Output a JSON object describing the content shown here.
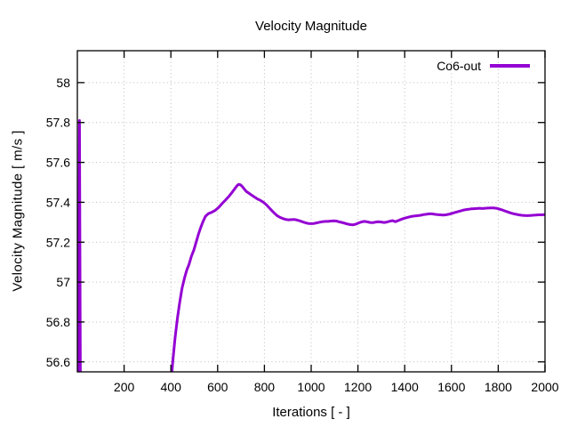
{
  "title": "Velocity Magnitude",
  "axes": {
    "xlabel": "Iterations [ - ]",
    "ylabel": "Velocity Magnitude [ m/s ]"
  },
  "legend": {
    "label": "Co6-out",
    "position": "top-right"
  },
  "colors": {
    "line": "#9400d3",
    "grid": "#bcbcbc",
    "border": "#000000",
    "background": "#ffffff",
    "text": "#000000"
  },
  "chart_data": {
    "type": "line",
    "title": "Velocity Magnitude",
    "xlabel": "Iterations [ - ]",
    "ylabel": "Velocity Magnitude [ m/s ]",
    "xlim": [
      0,
      2000
    ],
    "ylim": [
      56.55,
      58.16
    ],
    "xticks": [
      200,
      400,
      600,
      800,
      1000,
      1200,
      1400,
      1600,
      1800,
      2000
    ],
    "yticks": [
      56.6,
      56.8,
      57,
      57.2,
      57.4,
      57.6,
      57.8,
      58
    ],
    "grid": true,
    "grid_style": "dotted",
    "legend_position": "top-right",
    "series": [
      {
        "name": "Co6-out",
        "color": "#9400d3",
        "points": [
          [
            5,
            56.5
          ],
          [
            9,
            57.81
          ],
          [
            13,
            56.5
          ],
          [
            398,
            56.45
          ],
          [
            408,
            56.6
          ],
          [
            418,
            56.72
          ],
          [
            428,
            56.82
          ],
          [
            438,
            56.9
          ],
          [
            448,
            56.97
          ],
          [
            458,
            57.02
          ],
          [
            468,
            57.06
          ],
          [
            478,
            57.09
          ],
          [
            488,
            57.13
          ],
          [
            498,
            57.16
          ],
          [
            508,
            57.2
          ],
          [
            518,
            57.24
          ],
          [
            528,
            57.275
          ],
          [
            538,
            57.305
          ],
          [
            548,
            57.33
          ],
          [
            560,
            57.343
          ],
          [
            575,
            57.35
          ],
          [
            590,
            57.36
          ],
          [
            605,
            57.375
          ],
          [
            620,
            57.395
          ],
          [
            635,
            57.413
          ],
          [
            650,
            57.432
          ],
          [
            663,
            57.452
          ],
          [
            673,
            57.468
          ],
          [
            683,
            57.483
          ],
          [
            690,
            57.49
          ],
          [
            697,
            57.488
          ],
          [
            705,
            57.48
          ],
          [
            713,
            57.468
          ],
          [
            722,
            57.455
          ],
          [
            732,
            57.447
          ],
          [
            744,
            57.437
          ],
          [
            757,
            57.427
          ],
          [
            770,
            57.417
          ],
          [
            783,
            57.41
          ],
          [
            796,
            57.4
          ],
          [
            808,
            57.388
          ],
          [
            820,
            57.373
          ],
          [
            832,
            57.358
          ],
          [
            844,
            57.344
          ],
          [
            856,
            57.332
          ],
          [
            868,
            57.324
          ],
          [
            880,
            57.318
          ],
          [
            892,
            57.314
          ],
          [
            904,
            57.312
          ],
          [
            916,
            57.313
          ],
          [
            928,
            57.314
          ],
          [
            940,
            57.311
          ],
          [
            952,
            57.307
          ],
          [
            964,
            57.302
          ],
          [
            976,
            57.297
          ],
          [
            988,
            57.294
          ],
          [
            1000,
            57.293
          ],
          [
            1012,
            57.294
          ],
          [
            1024,
            57.297
          ],
          [
            1036,
            57.3
          ],
          [
            1048,
            57.303
          ],
          [
            1060,
            57.304
          ],
          [
            1072,
            57.304
          ],
          [
            1084,
            57.306
          ],
          [
            1096,
            57.307
          ],
          [
            1108,
            57.306
          ],
          [
            1120,
            57.302
          ],
          [
            1132,
            57.299
          ],
          [
            1144,
            57.295
          ],
          [
            1156,
            57.291
          ],
          [
            1168,
            57.288
          ],
          [
            1180,
            57.287
          ],
          [
            1192,
            57.291
          ],
          [
            1204,
            57.297
          ],
          [
            1216,
            57.302
          ],
          [
            1228,
            57.304
          ],
          [
            1240,
            57.302
          ],
          [
            1252,
            57.299
          ],
          [
            1264,
            57.298
          ],
          [
            1276,
            57.301
          ],
          [
            1288,
            57.303
          ],
          [
            1300,
            57.301
          ],
          [
            1312,
            57.299
          ],
          [
            1324,
            57.301
          ],
          [
            1336,
            57.305
          ],
          [
            1348,
            57.308
          ],
          [
            1360,
            57.303
          ],
          [
            1372,
            57.308
          ],
          [
            1384,
            57.314
          ],
          [
            1396,
            57.319
          ],
          [
            1408,
            57.323
          ],
          [
            1420,
            57.327
          ],
          [
            1432,
            57.33
          ],
          [
            1444,
            57.332
          ],
          [
            1456,
            57.333
          ],
          [
            1468,
            57.335
          ],
          [
            1480,
            57.338
          ],
          [
            1492,
            57.34
          ],
          [
            1504,
            57.342
          ],
          [
            1516,
            57.342
          ],
          [
            1528,
            57.34
          ],
          [
            1540,
            57.338
          ],
          [
            1552,
            57.337
          ],
          [
            1564,
            57.336
          ],
          [
            1576,
            57.337
          ],
          [
            1588,
            57.34
          ],
          [
            1600,
            57.344
          ],
          [
            1612,
            57.348
          ],
          [
            1624,
            57.352
          ],
          [
            1636,
            57.356
          ],
          [
            1648,
            57.36
          ],
          [
            1660,
            57.363
          ],
          [
            1672,
            57.365
          ],
          [
            1684,
            57.367
          ],
          [
            1696,
            57.368
          ],
          [
            1708,
            57.369
          ],
          [
            1720,
            57.37
          ],
          [
            1732,
            57.369
          ],
          [
            1744,
            57.37
          ],
          [
            1756,
            57.371
          ],
          [
            1768,
            57.372
          ],
          [
            1780,
            57.372
          ],
          [
            1792,
            57.37
          ],
          [
            1804,
            57.366
          ],
          [
            1816,
            57.362
          ],
          [
            1828,
            57.357
          ],
          [
            1840,
            57.352
          ],
          [
            1852,
            57.347
          ],
          [
            1864,
            57.343
          ],
          [
            1876,
            57.34
          ],
          [
            1888,
            57.337
          ],
          [
            1900,
            57.335
          ],
          [
            1912,
            57.334
          ],
          [
            1924,
            57.333
          ],
          [
            1936,
            57.334
          ],
          [
            1948,
            57.335
          ],
          [
            1960,
            57.336
          ],
          [
            1972,
            57.337
          ],
          [
            1984,
            57.337
          ],
          [
            2000,
            57.338
          ]
        ]
      }
    ]
  }
}
